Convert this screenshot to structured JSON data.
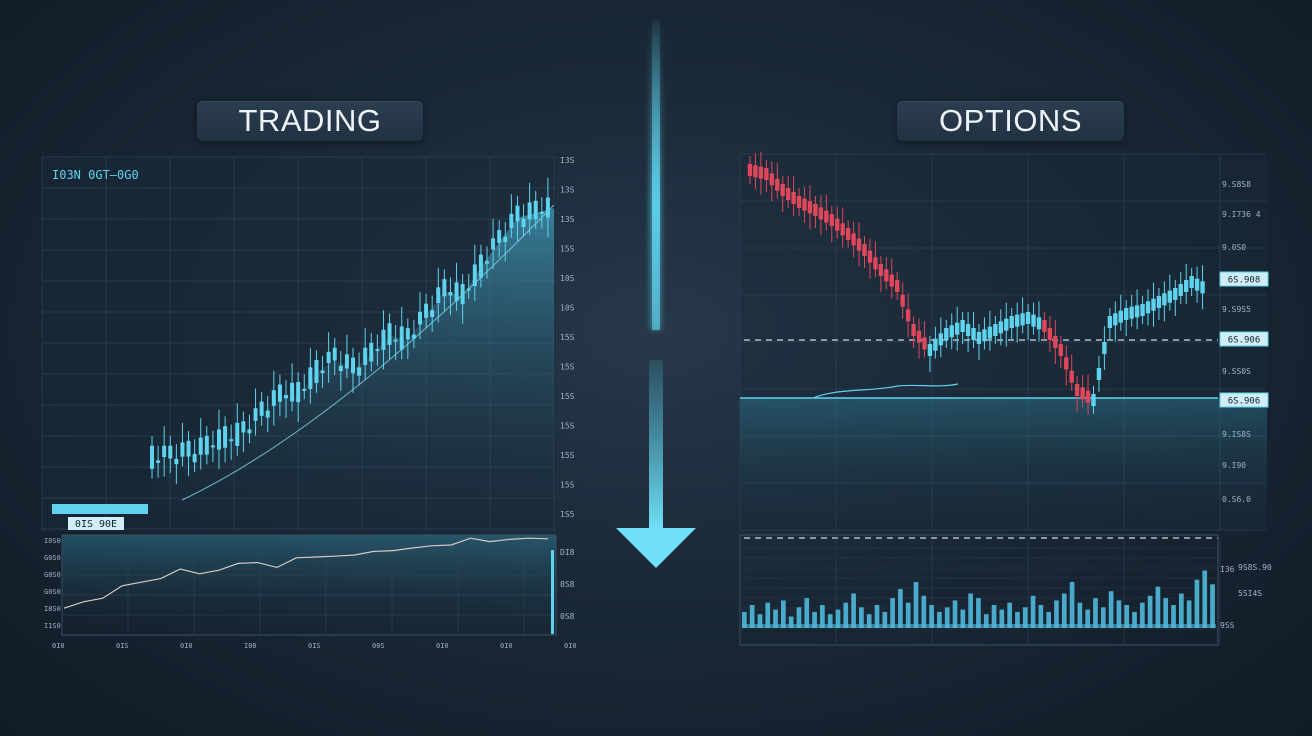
{
  "left_panel": {
    "title": "TRADING",
    "header_text": "I03N 0GT—0G0",
    "price_box": "0IS 90E",
    "y_tick_labels": [
      "I3S",
      "13S",
      "13S",
      "15S",
      "10S",
      "10S",
      "15S",
      "15S",
      "15S",
      "15S",
      "15S",
      "15S",
      "1S5"
    ],
    "lower_y_labels": [
      "I0S0",
      "G0S0",
      "G0S0",
      "G0S0",
      "I8S0",
      "I1S0"
    ],
    "lower_right_labels": [
      "DI8",
      "8S8",
      "0S8"
    ],
    "lower_x_labels": [
      "0I0",
      "0IS",
      "0I0",
      "I00",
      "0IS",
      "00S",
      "0I0",
      "0I0",
      "0I0"
    ]
  },
  "right_panel": {
    "title": "OPTIONS",
    "y_tick_labels": [
      "9.S8S8",
      "9.I736 4",
      "9.0S0",
      "9.S90",
      "9.S9S5",
      "9.8S0",
      "9.SS0S",
      "9.ISIS",
      "9.IS8S",
      "9.I90",
      "0.S6.0"
    ],
    "price_boxes": [
      "6S.908",
      "6S.906",
      "6S.906"
    ],
    "volume_labels": [
      "I36",
      "9S8S.90",
      "5SI4S",
      "9SS"
    ]
  },
  "colors": {
    "accent_cyan": "#5fd3ee",
    "bear_red": "#e0465c",
    "panel_bg": "#1b2b39",
    "grid": "#33485a"
  },
  "center_arrow": {
    "icon": "down-arrow-icon",
    "direction": "down"
  },
  "chart_data": [
    {
      "type": "candlestick",
      "title": "TRADING",
      "trend": "up",
      "description_series": [
        {
          "name": "close",
          "values": [
            20,
            20,
            22,
            24,
            28,
            30,
            38,
            45,
            46,
            55,
            60,
            56,
            62,
            70,
            68,
            78,
            88,
            86,
            98,
            108,
            118,
            120,
            122
          ]
        }
      ]
    },
    {
      "type": "line",
      "title": "",
      "values": [
        12,
        18,
        22,
        28,
        32,
        36,
        40,
        38,
        42,
        44,
        46,
        44,
        48,
        50,
        52,
        50,
        54,
        56,
        55,
        58,
        60,
        62,
        61,
        64,
        62,
        63
      ]
    },
    {
      "type": "candlestick",
      "title": "OPTIONS",
      "trend": "down-then-recover",
      "description_series": [
        {
          "name": "close",
          "values": [
            120,
            118,
            110,
            104,
            100,
            95,
            88,
            80,
            70,
            62,
            40,
            30,
            38,
            42,
            36,
            40,
            44,
            46,
            42,
            30,
            10,
            5,
            44,
            48,
            50,
            54,
            58,
            64,
            60
          ]
        }
      ]
    },
    {
      "type": "bar",
      "title": "",
      "values": [
        14,
        20,
        12,
        22,
        16,
        24,
        10,
        18,
        26,
        14,
        20,
        12,
        16,
        22,
        30,
        18,
        12,
        20,
        14,
        26,
        34,
        22,
        40,
        28,
        20,
        14,
        18,
        24,
        16,
        30,
        26,
        12,
        20,
        16,
        22,
        14,
        18,
        28,
        20,
        14,
        24,
        30,
        40,
        22,
        16,
        26,
        18,
        32,
        24,
        20,
        14,
        22,
        28,
        36,
        26,
        20,
        30,
        24,
        42,
        50,
        38
      ]
    }
  ]
}
